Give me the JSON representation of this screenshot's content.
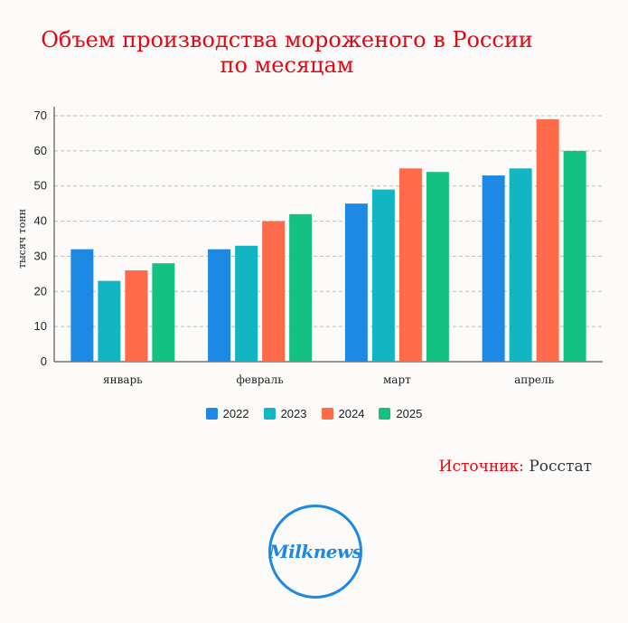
{
  "title_line1": "Объем производства мороженого в России",
  "title_line2": "по месяцам",
  "source_label": "Источник:",
  "source_value": "Росстат",
  "logo_text": "Milknews",
  "chart_data": {
    "type": "bar",
    "title": "Объем производства мороженого в России по месяцам",
    "ylabel": "тысяч тонн",
    "xlabel": "",
    "ylim": [
      0,
      70
    ],
    "yticks": [
      0,
      10,
      20,
      30,
      40,
      50,
      60,
      70
    ],
    "grid": true,
    "legend_position": "bottom",
    "categories": [
      "январь",
      "февраль",
      "март",
      "апрель"
    ],
    "series": [
      {
        "name": "2022",
        "color": "#1e88e5",
        "values": [
          32,
          32,
          45,
          53
        ]
      },
      {
        "name": "2023",
        "color": "#12b5c2",
        "values": [
          23,
          33,
          49,
          55
        ]
      },
      {
        "name": "2024",
        "color": "#ff6b4a",
        "values": [
          26,
          40,
          55,
          69
        ]
      },
      {
        "name": "2025",
        "color": "#14c184",
        "values": [
          28,
          42,
          54,
          60
        ]
      }
    ]
  }
}
